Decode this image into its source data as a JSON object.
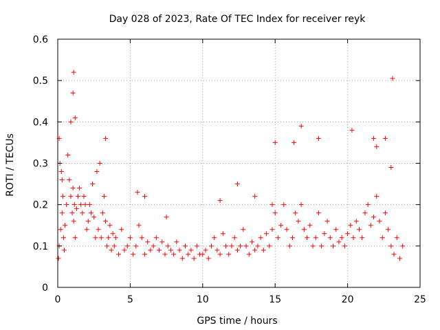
{
  "chart_data": {
    "type": "scatter",
    "title": "Day 028 of 2023, Rate Of TEC Index for receiver reyk",
    "xlabel": "GPS time / hours",
    "ylabel": "ROTI / TECUs",
    "xlim": [
      0,
      25
    ],
    "ylim": [
      0,
      0.6
    ],
    "x_ticks": [
      0,
      5,
      10,
      15,
      20,
      25
    ],
    "y_ticks": [
      0,
      0.1,
      0.2,
      0.3,
      0.4,
      0.5,
      0.6
    ],
    "x_tick_labels": [
      "0",
      "5",
      "10",
      "15",
      "20",
      "25"
    ],
    "y_tick_labels": [
      "0",
      "0.1",
      "0.2",
      "0.3",
      "0.4",
      "0.5",
      "0.6"
    ],
    "grid": true,
    "marker": "+",
    "color": "#ff0000",
    "series": [
      {
        "x": [
          0.05,
          0.1,
          0.15,
          0.2,
          0.25,
          0.3,
          0.35,
          0.4,
          0.45,
          0.5,
          0.6,
          0.7,
          0.8,
          0.9,
          1.0,
          1.05,
          1.1,
          1.15,
          1.2,
          1.3,
          1.4,
          1.5,
          1.6,
          1.7,
          1.8,
          1.9,
          2.0,
          2.1,
          2.2,
          2.3,
          2.4,
          2.5,
          2.6,
          2.7,
          2.8,
          2.9,
          3.0,
          3.1,
          3.2,
          3.3,
          3.4,
          3.5,
          3.6,
          3.7,
          3.8,
          3.9,
          4.0,
          4.2,
          4.4,
          4.6,
          4.8,
          5.0,
          5.2,
          5.4,
          5.6,
          5.8,
          6.0,
          6.2,
          6.4,
          6.6,
          6.8,
          7.0,
          7.2,
          7.4,
          7.6,
          7.8,
          8.0,
          8.2,
          8.4,
          8.6,
          8.8,
          9.0,
          9.2,
          9.4,
          9.6,
          9.8,
          10.0,
          10.2,
          10.4,
          10.6,
          10.8,
          11.0,
          11.2,
          11.4,
          11.6,
          11.8,
          12.0,
          12.2,
          12.4,
          12.6,
          12.8,
          13.0,
          13.2,
          13.4,
          13.6,
          13.8,
          14.0,
          14.2,
          14.4,
          14.6,
          14.8,
          15.0,
          15.2,
          15.4,
          15.6,
          15.8,
          16.0,
          16.2,
          16.4,
          16.6,
          16.8,
          17.0,
          17.2,
          17.4,
          17.6,
          17.8,
          18.0,
          18.2,
          18.4,
          18.6,
          18.8,
          19.0,
          19.2,
          19.4,
          19.6,
          19.8,
          20.0,
          20.2,
          20.4,
          20.6,
          20.8,
          21.0,
          21.2,
          21.4,
          21.6,
          21.8,
          22.0,
          22.2,
          22.4,
          22.6,
          22.8,
          23.0,
          23.2,
          23.4,
          23.6,
          23.8,
          0.1,
          0.3,
          0.9,
          1.05,
          1.1,
          1.2,
          3.3,
          5.5,
          6.0,
          7.5,
          11.2,
          12.4,
          13.6,
          14.8,
          15.0,
          16.3,
          16.8,
          18.0,
          20.3,
          21.8,
          22.0,
          22.6,
          23.0,
          23.1
        ],
        "y": [
          0.07,
          0.1,
          0.3,
          0.14,
          0.28,
          0.18,
          0.22,
          0.12,
          0.09,
          0.15,
          0.2,
          0.32,
          0.26,
          0.22,
          0.18,
          0.24,
          0.16,
          0.2,
          0.12,
          0.19,
          0.22,
          0.24,
          0.2,
          0.18,
          0.22,
          0.2,
          0.14,
          0.16,
          0.2,
          0.18,
          0.25,
          0.17,
          0.12,
          0.28,
          0.14,
          0.3,
          0.12,
          0.18,
          0.22,
          0.16,
          0.1,
          0.12,
          0.15,
          0.09,
          0.13,
          0.1,
          0.12,
          0.08,
          0.14,
          0.09,
          0.1,
          0.12,
          0.08,
          0.1,
          0.15,
          0.12,
          0.08,
          0.11,
          0.09,
          0.1,
          0.12,
          0.09,
          0.11,
          0.08,
          0.1,
          0.09,
          0.08,
          0.11,
          0.09,
          0.07,
          0.1,
          0.08,
          0.09,
          0.07,
          0.1,
          0.08,
          0.08,
          0.09,
          0.07,
          0.1,
          0.12,
          0.09,
          0.08,
          0.13,
          0.1,
          0.08,
          0.1,
          0.12,
          0.09,
          0.1,
          0.14,
          0.1,
          0.08,
          0.11,
          0.09,
          0.1,
          0.12,
          0.09,
          0.13,
          0.1,
          0.14,
          0.18,
          0.12,
          0.15,
          0.2,
          0.14,
          0.1,
          0.12,
          0.18,
          0.16,
          0.2,
          0.14,
          0.12,
          0.15,
          0.1,
          0.12,
          0.18,
          0.1,
          0.13,
          0.16,
          0.12,
          0.1,
          0.14,
          0.11,
          0.12,
          0.1,
          0.13,
          0.15,
          0.12,
          0.16,
          0.14,
          0.12,
          0.18,
          0.2,
          0.15,
          0.17,
          0.22,
          0.16,
          0.12,
          0.18,
          0.14,
          0.1,
          0.08,
          0.12,
          0.07,
          0.1,
          0.36,
          0.26,
          0.4,
          0.47,
          0.52,
          0.41,
          0.36,
          0.23,
          0.22,
          0.17,
          0.21,
          0.25,
          0.22,
          0.2,
          0.35,
          0.35,
          0.39,
          0.36,
          0.38,
          0.36,
          0.34,
          0.36,
          0.29,
          0.505
        ]
      }
    ]
  }
}
